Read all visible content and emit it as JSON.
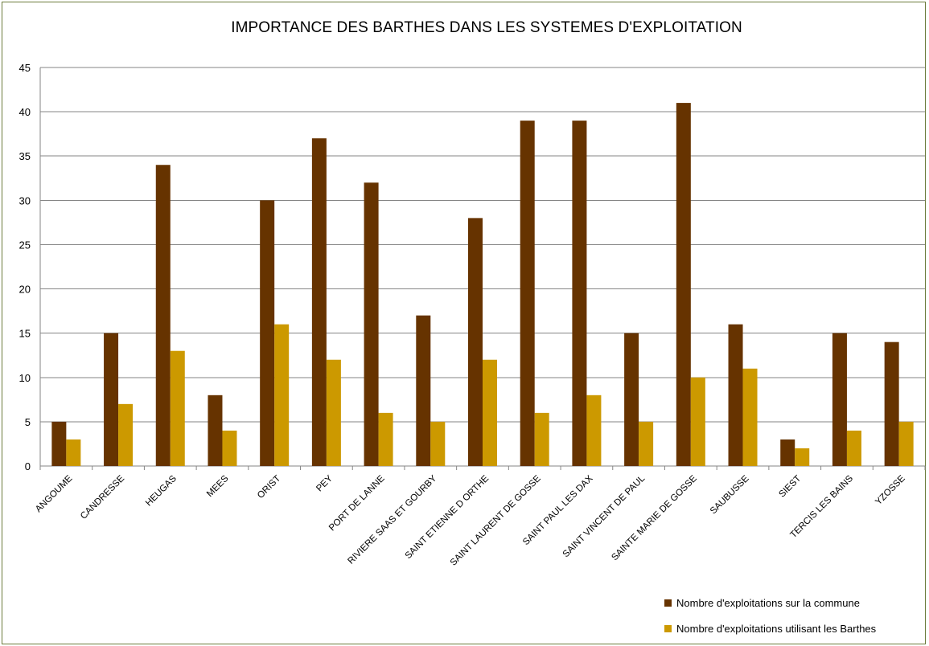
{
  "chart_data": {
    "type": "bar",
    "title": "IMPORTANCE DES BARTHES DANS LES SYSTEMES D'EXPLOITATION",
    "xlabel": "",
    "ylabel": "",
    "ylim": [
      0,
      45
    ],
    "yticks": [
      0,
      5,
      10,
      15,
      20,
      25,
      30,
      35,
      40,
      45
    ],
    "grid": true,
    "legend_position": "bottom-right",
    "categories": [
      "ANGOUME",
      "CANDRESSE",
      "HEUGAS",
      "MEES",
      "ORIST",
      "PEY",
      "PORT DE LANNE",
      "RIVIERE SAAS ET GOURBY",
      "SAINT ETIENNE  D ORTHE",
      "SAINT LAURENT  DE GOSSE",
      "SAINT PAUL LES DAX",
      "SAINT VINCENT  DE PAUL",
      "SAINTE MARIE DE GOSSE",
      "SAUBUSSE",
      "SIEST",
      "TERCIS LES BAINS",
      "YZOSSE"
    ],
    "series": [
      {
        "name": "Nombre d'exploitations sur la commune",
        "color": "#663300",
        "values": [
          5,
          15,
          34,
          8,
          30,
          37,
          32,
          17,
          28,
          39,
          39,
          15,
          41,
          16,
          3,
          15,
          14
        ]
      },
      {
        "name": "Nombre d'exploitations utilisant les Barthes",
        "color": "#cc9900",
        "values": [
          3,
          7,
          13,
          4,
          16,
          12,
          6,
          5,
          12,
          6,
          8,
          5,
          10,
          11,
          2,
          4,
          5
        ]
      }
    ]
  }
}
